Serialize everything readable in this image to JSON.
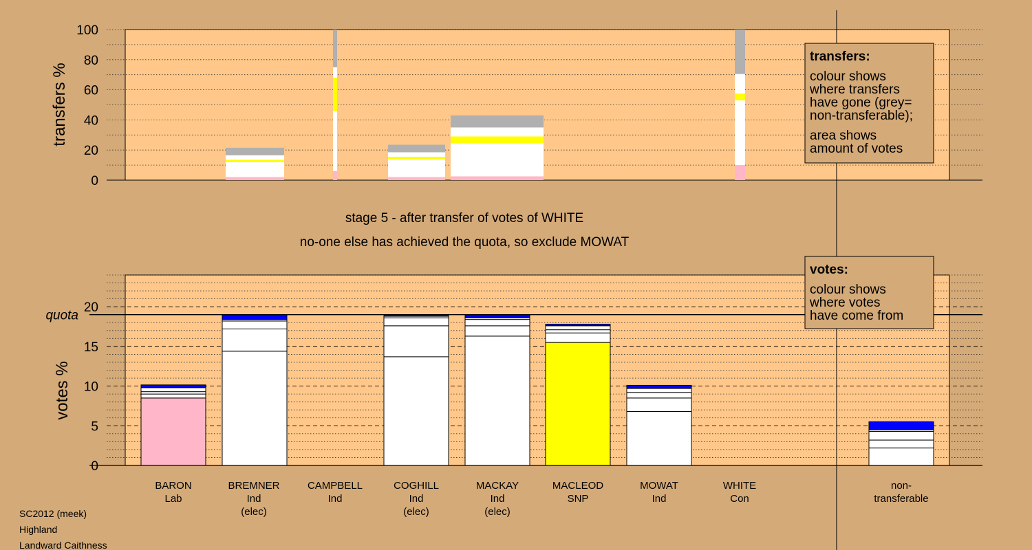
{
  "legend_transfers": {
    "title": "transfers:",
    "lines": [
      "colour shows",
      "where transfers",
      "have gone (grey=",
      "non-transferable);",
      "area shows",
      "amount of votes"
    ]
  },
  "legend_votes": {
    "title": "votes:",
    "lines": [
      "colour shows",
      "where votes",
      "have come from"
    ]
  },
  "stage_title": "stage 5 - after transfer of votes of WHITE",
  "stage_subtitle": "no-one else has achieved the quota, so exclude MOWAT",
  "footer": [
    "SC2012 (meek)",
    "Highland",
    "Landward Caithness"
  ],
  "colors": {
    "background": "#d4aa78",
    "plot_area": "#ffc88a",
    "Lab": "#ffb6c8",
    "Ind": "#ffffff",
    "SNP": "#ffff00",
    "Con": "#0000ff",
    "nontransferable": "#b0b0b0"
  },
  "chart_data": [
    {
      "type": "bar",
      "ylabel": "transfers %",
      "ylim": [
        0,
        100
      ],
      "yticks": [
        0,
        20,
        40,
        60,
        80,
        100
      ],
      "grid": "dotted every 10",
      "bars": [
        {
          "candidate": "BREMNER",
          "segments": [
            {
              "color": "Lab",
              "value": 2
            },
            {
              "color": "Ind",
              "value": 10
            },
            {
              "color": "SNP",
              "value": 1.5
            },
            {
              "color": "Ind",
              "value": 3
            },
            {
              "color": "nontransferable",
              "value": 5
            }
          ]
        },
        {
          "candidate": "CAMPBELL",
          "segments": [
            {
              "color": "Lab",
              "value": 6
            },
            {
              "color": "Ind",
              "value": 40
            },
            {
              "color": "SNP",
              "value": 22
            },
            {
              "color": "Ind",
              "value": 7
            },
            {
              "color": "nontransferable",
              "value": 25
            }
          ]
        },
        {
          "candidate": "COGHILL",
          "segments": [
            {
              "color": "Lab",
              "value": 2
            },
            {
              "color": "Ind",
              "value": 12
            },
            {
              "color": "SNP",
              "value": 1.5
            },
            {
              "color": "Ind",
              "value": 3
            },
            {
              "color": "nontransferable",
              "value": 5
            }
          ]
        },
        {
          "candidate": "MACKAY",
          "segments": [
            {
              "color": "Lab",
              "value": 2.5
            },
            {
              "color": "Ind",
              "value": 22
            },
            {
              "color": "SNP",
              "value": 4.5
            },
            {
              "color": "Ind",
              "value": 6
            },
            {
              "color": "nontransferable",
              "value": 8
            }
          ]
        },
        {
          "candidate": "WHITE",
          "segments": [
            {
              "color": "Lab",
              "value": 10
            },
            {
              "color": "Ind",
              "value": 43
            },
            {
              "color": "SNP",
              "value": 4.5
            },
            {
              "color": "Ind",
              "value": 13
            },
            {
              "color": "nontransferable",
              "value": 29.5
            }
          ]
        }
      ]
    },
    {
      "type": "bar",
      "ylabel": "votes %",
      "ylim": [
        0,
        24
      ],
      "yticks": [
        0,
        5,
        10,
        15,
        20
      ],
      "quota": 19.0,
      "quota_label": "quota",
      "candidates": [
        {
          "name": "BARON",
          "party": "Lab",
          "elec": ""
        },
        {
          "name": "BREMNER",
          "party": "Ind",
          "elec": "(elec)"
        },
        {
          "name": "CAMPBELL",
          "party": "Ind",
          "elec": ""
        },
        {
          "name": "COGHILL",
          "party": "Ind",
          "elec": "(elec)"
        },
        {
          "name": "MACKAY",
          "party": "Ind",
          "elec": "(elec)"
        },
        {
          "name": "MACLEOD",
          "party": "SNP",
          "elec": ""
        },
        {
          "name": "MOWAT",
          "party": "Ind",
          "elec": ""
        },
        {
          "name": "WHITE",
          "party": "Con",
          "elec": ""
        }
      ],
      "nontransferable_label": [
        "non-",
        "transferable"
      ],
      "bars": [
        {
          "candidate": "BARON",
          "segments": [
            {
              "color": "Lab",
              "value": 8.5
            },
            {
              "color": "Ind",
              "value": 0.5
            },
            {
              "color": "Ind",
              "value": 0.3
            },
            {
              "color": "Ind",
              "value": 0.5
            },
            {
              "color": "Con",
              "value": 0.35
            }
          ]
        },
        {
          "candidate": "BREMNER",
          "segments": [
            {
              "color": "Ind",
              "value": 14.4
            },
            {
              "color": "Ind",
              "value": 2.8
            },
            {
              "color": "Ind",
              "value": 1.0
            },
            {
              "color": "Ind",
              "value": 0.2
            },
            {
              "color": "Con",
              "value": 0.6
            }
          ]
        },
        {
          "candidate": "COGHILL",
          "segments": [
            {
              "color": "Ind",
              "value": 13.7
            },
            {
              "color": "Ind",
              "value": 3.9
            },
            {
              "color": "Ind",
              "value": 1.0
            },
            {
              "color": "Ind",
              "value": 0.2
            },
            {
              "color": "Con",
              "value": 0.2
            }
          ]
        },
        {
          "candidate": "MACKAY",
          "segments": [
            {
              "color": "Ind",
              "value": 16.3
            },
            {
              "color": "Ind",
              "value": 1.3
            },
            {
              "color": "Ind",
              "value": 0.8
            },
            {
              "color": "Ind",
              "value": 0.2
            },
            {
              "color": "Con",
              "value": 0.4
            }
          ]
        },
        {
          "candidate": "MACLEOD",
          "segments": [
            {
              "color": "SNP",
              "value": 15.5
            },
            {
              "color": "Ind",
              "value": 1.2
            },
            {
              "color": "Ind",
              "value": 0.4
            },
            {
              "color": "Ind",
              "value": 0.5
            },
            {
              "color": "Con",
              "value": 0.2
            }
          ]
        },
        {
          "candidate": "MOWAT",
          "segments": [
            {
              "color": "Ind",
              "value": 6.8
            },
            {
              "color": "Ind",
              "value": 1.7
            },
            {
              "color": "Ind",
              "value": 0.7
            },
            {
              "color": "Ind",
              "value": 0.5
            },
            {
              "color": "Con",
              "value": 0.4
            }
          ]
        },
        {
          "candidate": "nontransferable",
          "segments": [
            {
              "color": "Ind",
              "value": 2.2
            },
            {
              "color": "Ind",
              "value": 1.0
            },
            {
              "color": "Ind",
              "value": 1.1
            },
            {
              "color": "Ind",
              "value": 0.2
            },
            {
              "color": "Con",
              "value": 1.0
            }
          ]
        }
      ]
    }
  ]
}
